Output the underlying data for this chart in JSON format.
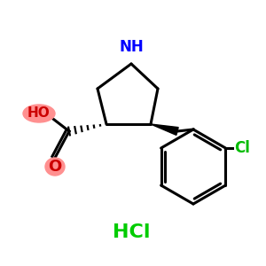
{
  "bg_color": "#ffffff",
  "bond_color": "#000000",
  "N_color": "#0000ff",
  "O_color": "#cc0000",
  "Cl_color": "#00bb00",
  "HCl_color": "#00cc00",
  "fig_size": [
    3.0,
    3.0
  ],
  "dpi": 100,
  "HCl_text": "HCl",
  "NH_text": "NH",
  "HO_text": "HO",
  "O_text": "O",
  "Cl_text": "Cl",
  "ellipse_color": "#ff9090",
  "O_bg_color": "#ff9090"
}
